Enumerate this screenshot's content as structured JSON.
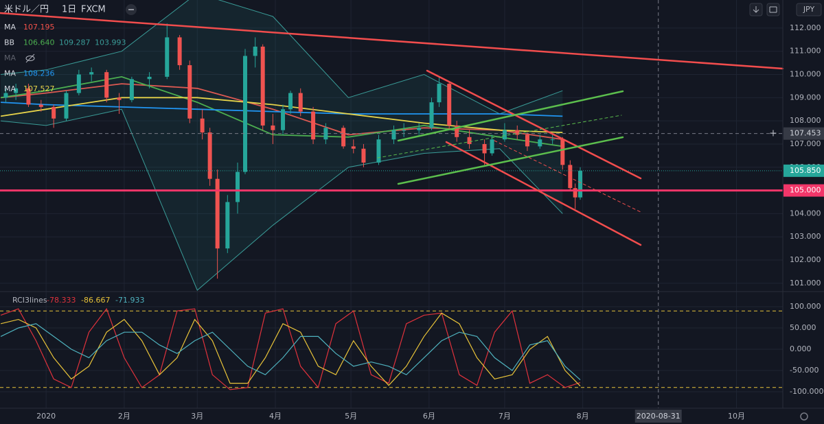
{
  "chart_data": [
    {
      "type": "candlestick",
      "title": "米ドル／円",
      "interval": "1日",
      "source": "FXCM",
      "currency": "JPY",
      "up_color": "#26a69a",
      "down_color": "#ef5350",
      "x": [
        -16,
        -12,
        -7,
        -2,
        3,
        8,
        13,
        18,
        24,
        29,
        34,
        41,
        48,
        53,
        57,
        62,
        65,
        68,
        72,
        76,
        79,
        83,
        86,
        90,
        94,
        97,
        101,
        106,
        111,
        118,
        122,
        126,
        132,
        138,
        142,
        148,
        153,
        156,
        160,
        163,
        168,
        174,
        177,
        182,
        187,
        191,
        196,
        201,
        205,
        208,
        210,
        212
      ],
      "open": [
        109.0,
        109.2,
        109.4,
        108.7,
        108.6,
        108.1,
        109.2,
        110.0,
        110.1,
        109.0,
        108.9,
        109.8,
        109.9,
        111.6,
        110.4,
        108.1,
        107.5,
        105.5,
        102.5,
        104.5,
        105.8,
        110.8,
        111.2,
        107.8,
        107.6,
        108.5,
        109.2,
        108.4,
        107.2,
        107.7,
        106.9,
        106.8,
        106.2,
        107.2,
        107.6,
        107.6,
        107.7,
        108.8,
        109.6,
        107.8,
        107.3,
        107.0,
        106.6,
        107.2,
        107.6,
        107.4,
        106.9,
        107.2,
        107.2,
        106.1,
        105.1,
        104.7
      ],
      "high": [
        109.4,
        109.6,
        109.6,
        108.9,
        108.7,
        109.3,
        110.2,
        110.3,
        110.2,
        109.2,
        109.9,
        110.1,
        112.2,
        111.7,
        110.6,
        108.5,
        107.7,
        105.9,
        104.8,
        106.2,
        111.1,
        111.6,
        111.3,
        108.3,
        108.7,
        109.3,
        109.4,
        108.6,
        107.9,
        107.8,
        107.2,
        107.0,
        107.4,
        107.8,
        107.9,
        107.9,
        109.0,
        109.9,
        109.7,
        108.0,
        107.6,
        107.2,
        107.4,
        107.9,
        107.8,
        107.5,
        107.4,
        107.4,
        107.3,
        106.3,
        105.3,
        106.0
      ],
      "low": [
        108.8,
        108.9,
        108.6,
        108.4,
        107.7,
        108.0,
        109.1,
        109.7,
        108.8,
        108.3,
        108.8,
        109.4,
        109.8,
        110.2,
        107.9,
        107.2,
        105.2,
        101.2,
        102.3,
        104.0,
        105.7,
        110.3,
        107.6,
        107.0,
        107.4,
        108.3,
        108.2,
        107.0,
        107.0,
        106.8,
        106.6,
        106.0,
        106.1,
        107.0,
        107.3,
        107.4,
        107.6,
        108.6,
        107.6,
        107.1,
        106.8,
        106.1,
        106.5,
        107.1,
        107.2,
        106.7,
        106.8,
        107.0,
        105.9,
        105.0,
        104.2,
        104.6
      ],
      "close": [
        109.2,
        109.4,
        108.7,
        108.6,
        108.1,
        109.2,
        110.0,
        110.1,
        109.0,
        108.9,
        109.8,
        109.9,
        111.6,
        110.4,
        108.1,
        107.5,
        105.5,
        102.5,
        104.5,
        105.8,
        110.8,
        111.2,
        107.8,
        107.6,
        108.5,
        109.2,
        108.4,
        107.2,
        107.7,
        106.9,
        106.8,
        106.2,
        107.2,
        107.6,
        107.6,
        107.7,
        108.8,
        109.6,
        107.8,
        107.3,
        107.0,
        106.6,
        107.2,
        107.6,
        107.4,
        106.9,
        107.2,
        107.2,
        106.1,
        105.1,
        104.7,
        105.85
      ],
      "overlay_x": [
        -18,
        0,
        30,
        60,
        90,
        120,
        150,
        180,
        205
      ],
      "indicators": [
        {
          "name": "MA",
          "color": "#f2514a",
          "readings": [
            107.195
          ],
          "lines": [
            {
              "color": "#f2514a",
              "values": [
                109.0,
                109.2,
                109.6,
                109.4,
                108.5,
                107.4,
                107.7,
                107.6,
                107.2
              ]
            }
          ]
        },
        {
          "name": "BB",
          "color": "#4caf50",
          "readings": [
            {
              "value": 106.64,
              "label": "106.640"
            },
            109.287,
            103.993
          ],
          "band_fill": "rgba(38,166,154,0.10)",
          "lines": [
            {
              "color": "#4caf50",
              "values": [
                109.0,
                109.3,
                109.9,
                108.8,
                107.4,
                107.3,
                107.8,
                107.3,
                106.9
              ]
            },
            {
              "color": "#3a9c98",
              "values": [
                110.0,
                110.2,
                111.0,
                113.5,
                112.5,
                109.0,
                110.0,
                108.3,
                109.3
              ]
            },
            {
              "color": "#3a9c98",
              "values": [
                108.0,
                107.8,
                108.5,
                100.7,
                103.5,
                106.0,
                106.6,
                106.8,
                104.0
              ]
            }
          ]
        },
        {
          "name": "MA",
          "hidden": true
        },
        {
          "name": "MA",
          "color": "#2196f3",
          "readings": [
            108.236
          ],
          "lines": [
            {
              "color": "#2196f3",
              "values": [
                108.8,
                108.7,
                108.6,
                108.5,
                108.4,
                108.3,
                108.3,
                108.3,
                108.2
              ]
            }
          ]
        },
        {
          "name": "MA",
          "color": "#e6d34a",
          "readings": [
            107.527
          ],
          "lines": [
            {
              "color": "#e6d34a",
              "values": [
                108.2,
                108.5,
                109.0,
                109.0,
                108.7,
                108.3,
                107.9,
                107.6,
                107.5
              ]
            }
          ]
        }
      ],
      "price_lines": [
        {
          "value": 105,
          "label": "105.000",
          "color": "#f23669"
        },
        {
          "value": 105.85,
          "label": "105.850",
          "color": "#26a69a"
        }
      ],
      "crosshair_y": {
        "value": 107.453,
        "label": "107.453"
      },
      "crosshair_x": {
        "value": 243,
        "label": "2020-08-31"
      },
      "xlim": [
        -18.3,
        292.4
      ],
      "xticks": [
        {
          "value": 0,
          "label": "2020"
        },
        {
          "value": 31,
          "label": "2月"
        },
        {
          "value": 60,
          "label": "3月"
        },
        {
          "value": 91,
          "label": "4月"
        },
        {
          "value": 121,
          "label": "5月"
        },
        {
          "value": 152,
          "label": "6月"
        },
        {
          "value": 182,
          "label": "7月"
        },
        {
          "value": 213,
          "label": "8月"
        },
        {
          "value": 274,
          "label": "10月"
        }
      ],
      "ylim": [
        100.64,
        113.21
      ],
      "yticks": [
        {
          "value": 101,
          "label": "101.000"
        },
        {
          "value": 102,
          "label": "102.000"
        },
        {
          "value": 103,
          "label": "103.000"
        },
        {
          "value": 104,
          "label": "104.000"
        },
        {
          "value": 105,
          "label": "105.000"
        },
        {
          "value": 106,
          "label": "106.000"
        },
        {
          "value": 107,
          "label": "107.000"
        },
        {
          "value": 108,
          "label": "108.000"
        },
        {
          "value": 109,
          "label": "109.000"
        },
        {
          "value": 110,
          "label": "110.000"
        },
        {
          "value": 111,
          "label": "111.000"
        },
        {
          "value": 112,
          "label": "112.000"
        }
      ]
    },
    {
      "type": "line",
      "title": "RCI3lines",
      "x": [
        -18,
        -11,
        -4,
        3,
        10,
        17,
        24,
        31,
        38,
        45,
        52,
        59,
        66,
        73,
        80,
        87,
        94,
        101,
        108,
        115,
        122,
        129,
        136,
        143,
        150,
        157,
        164,
        171,
        178,
        185,
        192,
        199,
        206,
        212
      ],
      "series": [
        {
          "color": "#e0323c",
          "reading": -78.333,
          "values": [
            80,
            95,
            20,
            -70,
            -90,
            40,
            95,
            -20,
            -90,
            -60,
            90,
            95,
            -60,
            -95,
            -90,
            85,
            95,
            -40,
            -90,
            60,
            90,
            -60,
            -80,
            60,
            80,
            85,
            -60,
            -85,
            40,
            90,
            -80,
            -60,
            -90,
            -78.333
          ]
        },
        {
          "color": "#e8c339",
          "reading": -86.667,
          "values": [
            60,
            70,
            50,
            -20,
            -70,
            -40,
            40,
            70,
            20,
            -60,
            -20,
            70,
            20,
            -80,
            -80,
            -20,
            60,
            40,
            -40,
            -60,
            20,
            -40,
            -85,
            -40,
            30,
            85,
            60,
            -20,
            -70,
            -60,
            0,
            30,
            -50,
            -86.667
          ]
        },
        {
          "color": "#4fb3bf",
          "reading": -71.933,
          "values": [
            30,
            50,
            60,
            30,
            0,
            -20,
            20,
            40,
            40,
            10,
            -10,
            20,
            40,
            0,
            -40,
            -60,
            -20,
            30,
            30,
            -10,
            -40,
            -30,
            -40,
            -60,
            -20,
            20,
            40,
            30,
            -20,
            -50,
            10,
            20,
            -40,
            -71.933
          ]
        }
      ],
      "levels": [
        90,
        -90
      ],
      "level_color": "#e8c339",
      "ylim": [
        -138.7,
        135.5
      ],
      "yticks": [
        {
          "value": 100,
          "label": "100.000"
        },
        {
          "value": 50,
          "label": "50.000"
        },
        {
          "value": 0,
          "label": "0.000"
        },
        {
          "value": -50,
          "label": "-50.000"
        },
        {
          "value": -100,
          "label": "-100.000"
        }
      ]
    }
  ]
}
